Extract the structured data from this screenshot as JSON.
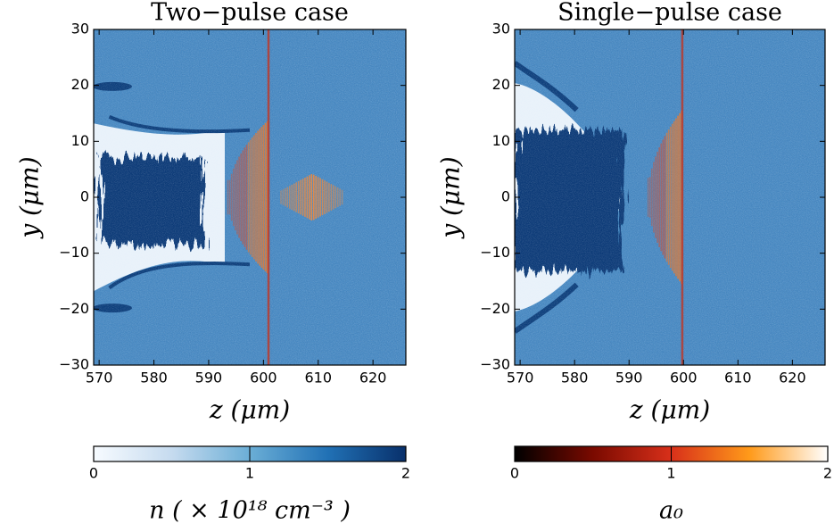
{
  "chart_data": [
    {
      "type": "heatmap",
      "title": "Two−pulse case",
      "xlabel": "z (μm)",
      "ylabel": "y (μm)",
      "xlim": [
        569,
        626
      ],
      "ylim": [
        -30,
        30
      ],
      "xticks": [
        570,
        580,
        590,
        600,
        610,
        620
      ],
      "yticks": [
        {
          "value": -30,
          "label": "−30"
        },
        {
          "value": -20,
          "label": "−20"
        },
        {
          "value": -10,
          "label": "−10"
        },
        0,
        10,
        20,
        30
      ]
    },
    {
      "type": "heatmap",
      "title": "Single−pulse case",
      "xlabel": "z (μm)",
      "ylabel": "y (μm)",
      "xlim": [
        569,
        626
      ],
      "ylim": [
        -30,
        30
      ],
      "xticks": [
        570,
        580,
        590,
        600,
        610,
        620
      ],
      "yticks": [
        {
          "value": -30,
          "label": "−30"
        },
        {
          "value": -20,
          "label": "−20"
        },
        {
          "value": -10,
          "label": "−10"
        },
        0,
        10,
        20,
        30
      ]
    },
    {
      "type": "colorbar",
      "label": "n ( × 10¹⁸ cm⁻³ )",
      "xlim": [
        0,
        2
      ],
      "xticks": [
        0,
        1,
        2
      ],
      "colors": [
        "#f7fbff",
        "#c6dbef",
        "#6baed6",
        "#2171b5",
        "#08306b"
      ]
    },
    {
      "type": "colorbar",
      "label": "a₀",
      "xlim": [
        0,
        2
      ],
      "xticks": [
        0,
        1,
        2
      ],
      "colors": [
        "#000000",
        "#7a0a00",
        "#d8301a",
        "#ff9a1a",
        "#ffffff"
      ]
    }
  ]
}
